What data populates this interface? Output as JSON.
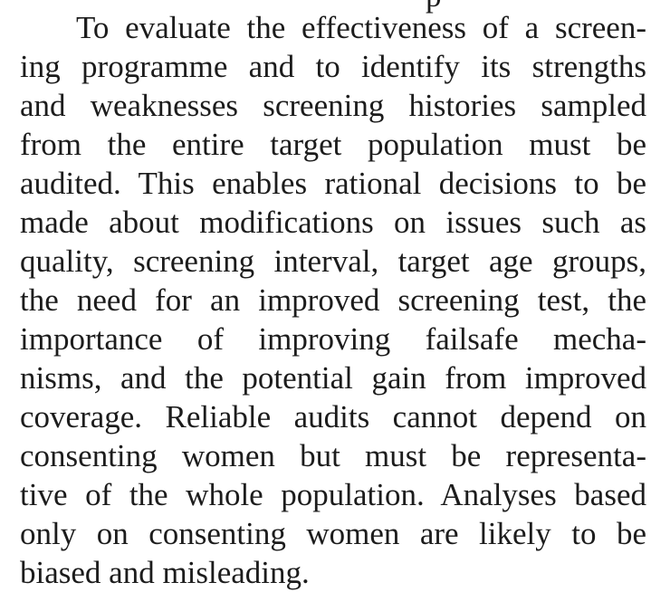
{
  "document": {
    "clipped_top_text": "p",
    "paragraph_lines": [
      "To evaluate the effectiveness of a screen-",
      "ing programme and to identify its strengths",
      "and weaknesses screening histories sampled",
      "from the entire target population must be",
      "audited. This enables rational decisions to be",
      "made about modifications on issues such as",
      "quality, screening interval, target age groups,",
      "the need for an improved screening test, the",
      "importance of improving failsafe mecha-",
      "nisms, and the potential gain from improved",
      "coverage. Reliable audits cannot depend on",
      "consenting women but must be representa-",
      "tive of the whole population. Analyses based",
      "only on consenting women are likely to be",
      "biased and misleading."
    ]
  }
}
